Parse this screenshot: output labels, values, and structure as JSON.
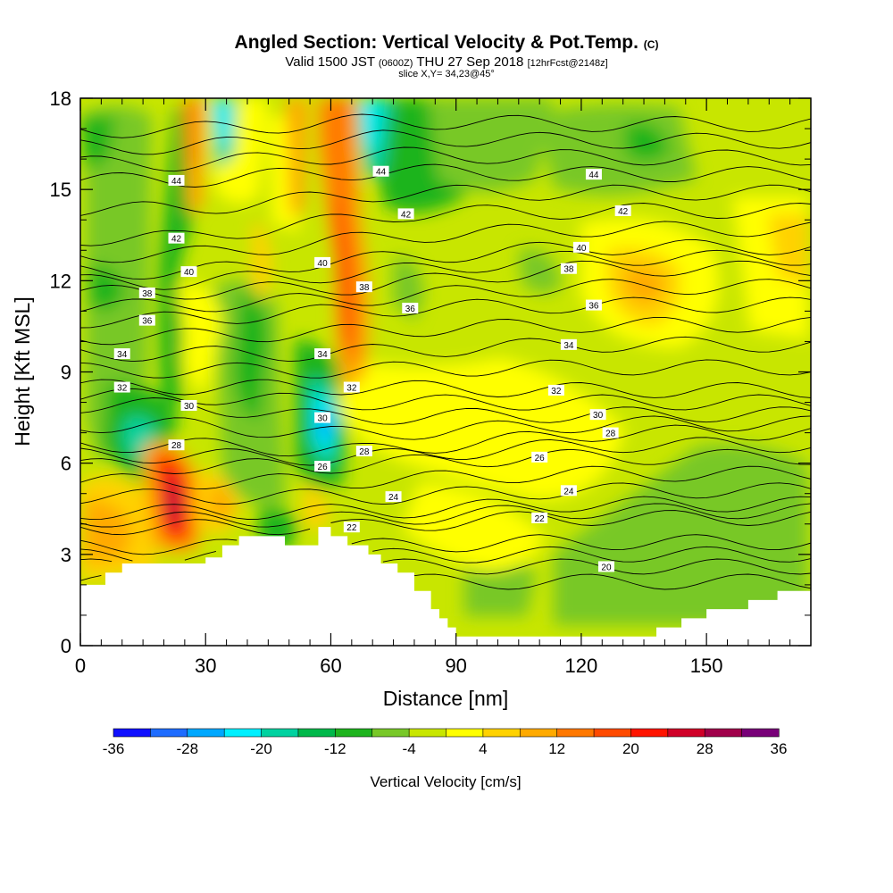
{
  "chart_data": {
    "type": "heatmap",
    "title": "Angled Section: Vertical Velocity & Pot.Temp.",
    "title_unit": "(C)",
    "subtitle": {
      "valid": "Valid 1500 JST",
      "utc": "(0600Z)",
      "date": "THU 27 Sep 2018",
      "forecast": "[12hrFcst@2148z]"
    },
    "slice_label": "slice X,Y= 34,23@45°",
    "xlabel": "Distance [nm]",
    "ylabel": "Height [Kft MSL]",
    "xlim": [
      0,
      175
    ],
    "ylim": [
      0,
      18
    ],
    "x_ticks": [
      0,
      30,
      60,
      90,
      120,
      150
    ],
    "x_tick_labels": [
      "0",
      "30",
      "60",
      "90",
      "120",
      "150"
    ],
    "y_ticks": [
      0,
      3,
      6,
      9,
      12,
      15,
      18
    ],
    "y_tick_labels": [
      "0",
      "3",
      "6",
      "9",
      "12",
      "15",
      "18"
    ],
    "colorbar": {
      "label": "Vertical Velocity [cm/s]",
      "ticks": [
        "-36",
        "-28",
        "-20",
        "-12",
        "-4",
        "4",
        "12",
        "20",
        "28",
        "36"
      ],
      "levels": [
        -36,
        -32,
        -28,
        -24,
        -20,
        -16,
        -12,
        -8,
        -4,
        0,
        4,
        8,
        12,
        16,
        20,
        24,
        28,
        32,
        36
      ],
      "colors": [
        "#1010ff",
        "#1e6cff",
        "#00a8ff",
        "#00f0ff",
        "#00d2a0",
        "#00b84a",
        "#1eb41e",
        "#78c828",
        "#c8e600",
        "#ffff00",
        "#ffd200",
        "#ffaa00",
        "#ff7800",
        "#ff4a00",
        "#ff1400",
        "#d00028",
        "#a0004a",
        "#780078"
      ]
    },
    "velocity_features": [
      {
        "x": 22,
        "y": 4.6,
        "value": 34
      },
      {
        "x": 63,
        "y": 11.0,
        "value": 16
      },
      {
        "x": 59,
        "y": 7.2,
        "value": -24
      },
      {
        "x": 32,
        "y": 17.2,
        "value": -22
      },
      {
        "x": 70,
        "y": 16.8,
        "value": -20
      },
      {
        "x": 135,
        "y": 11.8,
        "value": 8
      }
    ],
    "terrain": {
      "x": [
        0,
        4,
        6,
        10,
        20,
        29,
        30,
        34,
        38,
        40,
        48,
        49,
        52,
        57,
        58,
        60,
        64,
        69,
        72,
        76,
        80,
        84,
        86,
        88,
        90,
        100,
        110,
        115,
        120,
        125,
        130,
        138,
        144,
        150,
        156,
        160,
        167,
        175
      ],
      "height": [
        2.0,
        2.0,
        2.4,
        2.7,
        2.7,
        2.7,
        2.9,
        3.3,
        3.6,
        3.6,
        3.6,
        3.3,
        3.3,
        3.9,
        3.9,
        3.6,
        3.3,
        3.0,
        2.7,
        2.4,
        1.8,
        1.2,
        0.9,
        0.6,
        0.3,
        0.3,
        0.3,
        0.3,
        0.3,
        0.3,
        0.3,
        0.6,
        0.9,
        1.2,
        1.2,
        1.5,
        1.8,
        1.8
      ]
    },
    "isentrope_labels": [
      {
        "label": "44",
        "x": 23,
        "y": 15.3
      },
      {
        "label": "44",
        "x": 72,
        "y": 15.6
      },
      {
        "label": "44",
        "x": 123,
        "y": 15.5
      },
      {
        "label": "42",
        "x": 23,
        "y": 13.4
      },
      {
        "label": "42",
        "x": 78,
        "y": 14.2
      },
      {
        "label": "42",
        "x": 130,
        "y": 14.3
      },
      {
        "label": "40",
        "x": 26,
        "y": 12.3
      },
      {
        "label": "40",
        "x": 58,
        "y": 12.6
      },
      {
        "label": "40",
        "x": 120,
        "y": 13.1
      },
      {
        "label": "38",
        "x": 16,
        "y": 11.6
      },
      {
        "label": "38",
        "x": 68,
        "y": 11.8
      },
      {
        "label": "38",
        "x": 117,
        "y": 12.4
      },
      {
        "label": "36",
        "x": 16,
        "y": 10.7
      },
      {
        "label": "36",
        "x": 79,
        "y": 11.1
      },
      {
        "label": "36",
        "x": 123,
        "y": 11.2
      },
      {
        "label": "34",
        "x": 10,
        "y": 9.6
      },
      {
        "label": "34",
        "x": 58,
        "y": 9.6
      },
      {
        "label": "34",
        "x": 117,
        "y": 9.9
      },
      {
        "label": "32",
        "x": 10,
        "y": 8.5
      },
      {
        "label": "32",
        "x": 65,
        "y": 8.5
      },
      {
        "label": "32",
        "x": 114,
        "y": 8.4
      },
      {
        "label": "30",
        "x": 26,
        "y": 7.9
      },
      {
        "label": "30",
        "x": 58,
        "y": 7.5
      },
      {
        "label": "30",
        "x": 124,
        "y": 7.6
      },
      {
        "label": "28",
        "x": 23,
        "y": 6.6
      },
      {
        "label": "28",
        "x": 68,
        "y": 6.4
      },
      {
        "label": "28",
        "x": 127,
        "y": 7.0
      },
      {
        "label": "26",
        "x": 58,
        "y": 5.9
      },
      {
        "label": "26",
        "x": 110,
        "y": 6.2
      },
      {
        "label": "24",
        "x": 75,
        "y": 4.9
      },
      {
        "label": "24",
        "x": 117,
        "y": 5.1
      },
      {
        "label": "22",
        "x": 65,
        "y": 3.9
      },
      {
        "label": "22",
        "x": 110,
        "y": 4.2
      },
      {
        "label": "20",
        "x": 126,
        "y": 2.6
      }
    ]
  }
}
